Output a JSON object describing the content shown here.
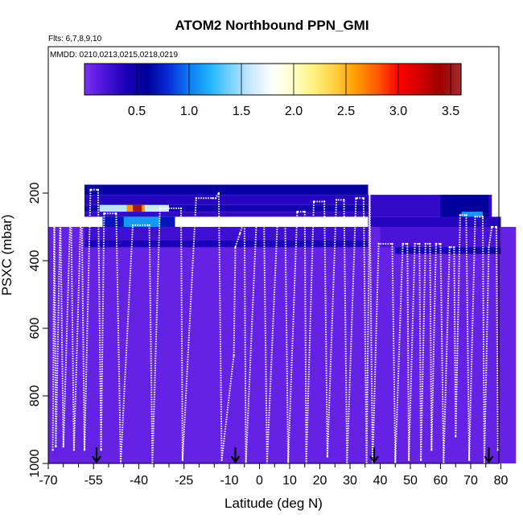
{
  "chart_data": {
    "type": "heatmap",
    "title": "ATOM2 Northbound PPN_GMI",
    "flights_note": "Flts: 6,7,8,9,10",
    "dates_note": "MMDD: 0210,0213,0215,0218,0219",
    "xlabel": "Latitude (deg N)",
    "ylabel": "PSXC (mbar)",
    "xlim": [
      -70,
      85
    ],
    "ylim": [
      1000,
      0
    ],
    "x_ticks": [
      "-70",
      "-55",
      "-40",
      "-25",
      "-10",
      "0",
      "10",
      "20",
      "30",
      "40",
      "50",
      "60",
      "70",
      "80"
    ],
    "x_tick_values": [
      -70,
      -55,
      -40,
      -25,
      -10,
      0,
      10,
      20,
      30,
      40,
      50,
      60,
      70,
      80
    ],
    "y_ticks": [
      "200",
      "400",
      "600",
      "800",
      "1000"
    ],
    "y_tick_values": [
      200,
      400,
      600,
      800,
      1000
    ],
    "colorbar": {
      "min": 0.0,
      "max": 3.6,
      "tick_labels": [
        "0.5",
        "1.0",
        "1.5",
        "2.0",
        "2.5",
        "3.0",
        "3.5"
      ],
      "tick_values": [
        0.5,
        1.0,
        1.5,
        2.0,
        2.5,
        3.0,
        3.5
      ],
      "colors": [
        "#7b2ff0",
        "#4a14d8",
        "#1a00b8",
        "#00009c",
        "#0a2bd8",
        "#0c7bf0",
        "#1fb4ff",
        "#79d4ff",
        "#cde9ff",
        "#ffffff",
        "#ffffc8",
        "#fff07a",
        "#ffce3c",
        "#ff9a00",
        "#ff5a00",
        "#ff0000",
        "#d20000",
        "#a00000",
        "#a62c2c"
      ]
    },
    "heatmap_cells": [
      {
        "lat": [
          -70,
          85
        ],
        "p": [
          300,
          1000
        ],
        "value": 0.1
      },
      {
        "lat": [
          -58,
          36
        ],
        "p": [
          175,
          205
        ],
        "value": 0.55
      },
      {
        "lat": [
          -58,
          36
        ],
        "p": [
          205,
          235
        ],
        "value": 0.35
      },
      {
        "lat": [
          -58,
          36
        ],
        "p": [
          235,
          255
        ],
        "value": 0.45
      },
      {
        "lat": [
          -53,
          -44
        ],
        "p": [
          235,
          255
        ],
        "value": 1.55
      },
      {
        "lat": [
          -44,
          -38
        ],
        "p": [
          235,
          255
        ],
        "value": 2.6
      },
      {
        "lat": [
          -42,
          -39
        ],
        "p": [
          235,
          255
        ],
        "value": 3.5
      },
      {
        "lat": [
          -38,
          -30
        ],
        "p": [
          235,
          255
        ],
        "value": 1.6
      },
      {
        "lat": [
          -58,
          36
        ],
        "p": [
          255,
          270
        ],
        "value": 0.3
      },
      {
        "lat": [
          -52,
          -28
        ],
        "p": [
          270,
          300
        ],
        "value": 0.7
      },
      {
        "lat": [
          -45,
          -33
        ],
        "p": [
          270,
          300
        ],
        "value": 1.1
      },
      {
        "lat": [
          -58,
          36
        ],
        "p": [
          300,
          340
        ],
        "value": 0.25
      },
      {
        "lat": [
          -58,
          36
        ],
        "p": [
          340,
          360
        ],
        "value": 0.4
      },
      {
        "lat": [
          36,
          77
        ],
        "p": [
          205,
          270
        ],
        "value": 0.3
      },
      {
        "lat": [
          60,
          76
        ],
        "p": [
          205,
          300
        ],
        "value": 0.6
      },
      {
        "lat": [
          67,
          74
        ],
        "p": [
          255,
          300
        ],
        "value": 1.1
      },
      {
        "lat": [
          36,
          80
        ],
        "p": [
          270,
          300
        ],
        "value": 0.35
      },
      {
        "lat": [
          40,
          80
        ],
        "p": [
          300,
          360
        ],
        "value": 0.2
      },
      {
        "lat": [
          45,
          80
        ],
        "p": [
          360,
          380
        ],
        "value": 0.45
      }
    ],
    "flight_track": [
      {
        "lat": -68.5,
        "p": 960
      },
      {
        "lat": -68.0,
        "p": 245
      },
      {
        "lat": -67.5,
        "p": 950
      },
      {
        "lat": -66.0,
        "p": 255
      },
      {
        "lat": -65.0,
        "p": 950
      },
      {
        "lat": -62.5,
        "p": 210
      },
      {
        "lat": -61.5,
        "p": 960
      },
      {
        "lat": -59.0,
        "p": 200
      },
      {
        "lat": -58.0,
        "p": 960
      },
      {
        "lat": -56.0,
        "p": 190
      },
      {
        "lat": -53.5,
        "p": 190
      },
      {
        "lat": -52.5,
        "p": 960
      },
      {
        "lat": -51.5,
        "p": 260
      },
      {
        "lat": -47.5,
        "p": 260
      },
      {
        "lat": -46.0,
        "p": 1000
      },
      {
        "lat": -42.0,
        "p": 295
      },
      {
        "lat": -36.5,
        "p": 295
      },
      {
        "lat": -35.5,
        "p": 1000
      },
      {
        "lat": -33.0,
        "p": 245
      },
      {
        "lat": -26.0,
        "p": 245
      },
      {
        "lat": -25.5,
        "p": 990
      },
      {
        "lat": -21.0,
        "p": 215
      },
      {
        "lat": -15.5,
        "p": 215
      },
      {
        "lat": -14.5,
        "p": 215
      },
      {
        "lat": -13.5,
        "p": 200
      },
      {
        "lat": -12.5,
        "p": 990
      },
      {
        "lat": -8.5,
        "p": 680
      },
      {
        "lat": -8.0,
        "p": 360
      },
      {
        "lat": -6.5,
        "p": 320
      },
      {
        "lat": -5.0,
        "p": 280
      },
      {
        "lat": -4.5,
        "p": 1000
      },
      {
        "lat": -1.0,
        "p": 280
      },
      {
        "lat": 1.5,
        "p": 280
      },
      {
        "lat": 2.5,
        "p": 1000
      },
      {
        "lat": 6.0,
        "p": 275
      },
      {
        "lat": 8.5,
        "p": 275
      },
      {
        "lat": 9.5,
        "p": 1000
      },
      {
        "lat": 12.5,
        "p": 255
      },
      {
        "lat": 15.0,
        "p": 255
      },
      {
        "lat": 15.5,
        "p": 1000
      },
      {
        "lat": 18.0,
        "p": 225
      },
      {
        "lat": 21.5,
        "p": 225
      },
      {
        "lat": 22.5,
        "p": 980
      },
      {
        "lat": 25.5,
        "p": 220
      },
      {
        "lat": 28.0,
        "p": 220
      },
      {
        "lat": 29.0,
        "p": 1000
      },
      {
        "lat": 32.0,
        "p": 215
      },
      {
        "lat": 34.5,
        "p": 215
      },
      {
        "lat": 35.5,
        "p": 1000
      },
      {
        "lat": 36.5,
        "p": 205
      },
      {
        "lat": 37.5,
        "p": 1000
      },
      {
        "lat": 39.5,
        "p": 350
      },
      {
        "lat": 44.0,
        "p": 350
      },
      {
        "lat": 45.0,
        "p": 1000
      },
      {
        "lat": 47.5,
        "p": 350
      },
      {
        "lat": 49.0,
        "p": 350
      },
      {
        "lat": 49.5,
        "p": 990
      },
      {
        "lat": 51.5,
        "p": 350
      },
      {
        "lat": 53.0,
        "p": 350
      },
      {
        "lat": 53.5,
        "p": 990
      },
      {
        "lat": 55.0,
        "p": 350
      },
      {
        "lat": 56.5,
        "p": 350
      },
      {
        "lat": 57.0,
        "p": 960
      },
      {
        "lat": 58.5,
        "p": 350
      },
      {
        "lat": 60.0,
        "p": 350
      },
      {
        "lat": 61.0,
        "p": 1000
      },
      {
        "lat": 63.0,
        "p": 360
      },
      {
        "lat": 64.5,
        "p": 360
      },
      {
        "lat": 65.0,
        "p": 920
      },
      {
        "lat": 66.5,
        "p": 265
      },
      {
        "lat": 68.5,
        "p": 265
      },
      {
        "lat": 69.5,
        "p": 990
      },
      {
        "lat": 71.5,
        "p": 270
      },
      {
        "lat": 74.0,
        "p": 270
      },
      {
        "lat": 74.5,
        "p": 1000
      },
      {
        "lat": 76.0,
        "p": 360
      },
      {
        "lat": 77.0,
        "p": 300
      },
      {
        "lat": 78.5,
        "p": 300
      },
      {
        "lat": 79.0,
        "p": 960
      }
    ],
    "markers": [
      {
        "lat": -54,
        "p": 1000
      },
      {
        "lat": -8,
        "p": 1000
      },
      {
        "lat": 38,
        "p": 1000
      },
      {
        "lat": 76,
        "p": 1000
      }
    ]
  }
}
